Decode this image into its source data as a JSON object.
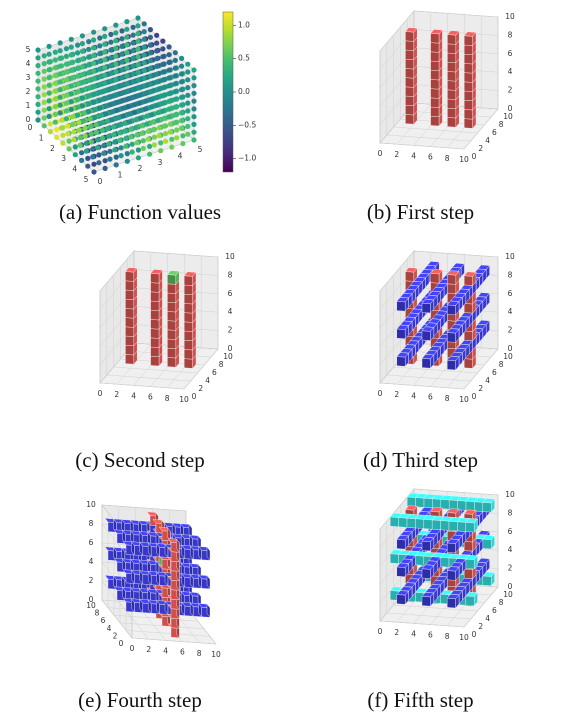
{
  "figure": {
    "captions": [
      "(a) Function values",
      "(b) First step",
      "(c) Second step",
      "(d) Third step",
      "(e) Fourth step",
      "(f) Fifth step"
    ]
  },
  "colors": {
    "red_voxel": "#d9534f",
    "green_voxel": "#5cb85c",
    "blue_voxel": "#3a3ad8",
    "cyan_voxel": "#33dfdf",
    "pane": "#f0f0f0",
    "grid": "#d0d0d0"
  },
  "chart_data": [
    {
      "type": "scatter",
      "subtype": "3d-scatter",
      "caption": "(a) Function values",
      "x_ticks": [
        "0",
        "1",
        "2",
        "3",
        "4",
        "5"
      ],
      "y_ticks": [
        "0",
        "1",
        "2",
        "3",
        "4",
        "5"
      ],
      "z_ticks": [
        "0",
        "1",
        "2",
        "3",
        "4",
        "5"
      ],
      "xlim": [
        0,
        5
      ],
      "ylim": [
        0,
        5
      ],
      "zlim": [
        0,
        5
      ],
      "grid_points_per_axis": 10,
      "colormap": "viridis",
      "colorbar": {
        "ticks": [
          "1.0",
          "0.5",
          "0.0",
          "−0.5",
          "−1.0"
        ],
        "range": [
          -1.2,
          1.2
        ]
      },
      "grid": true
    },
    {
      "type": "voxel",
      "caption": "(b) First step",
      "x_ticks": [
        "0",
        "2",
        "4",
        "6",
        "8",
        "10"
      ],
      "y_ticks": [
        "0",
        "2",
        "4",
        "6",
        "8",
        "10"
      ],
      "z_ticks": [
        "0",
        "2",
        "4",
        "6",
        "8",
        "10"
      ],
      "xlim": [
        0,
        10
      ],
      "ylim": [
        0,
        10
      ],
      "zlim": [
        0,
        10
      ],
      "columns": [
        {
          "x": 1,
          "y": 5
        },
        {
          "x": 4,
          "y": 5
        },
        {
          "x": 6,
          "y": 5
        },
        {
          "x": 8,
          "y": 5
        }
      ],
      "column_height": 10,
      "colors": [
        "red"
      ]
    },
    {
      "type": "voxel",
      "caption": "(c) Second step",
      "x_ticks": [
        "0",
        "2",
        "4",
        "6",
        "8",
        "10"
      ],
      "y_ticks": [
        "0",
        "2",
        "4",
        "6",
        "8",
        "10"
      ],
      "z_ticks": [
        "0",
        "2",
        "4",
        "6",
        "8",
        "10"
      ],
      "xlim": [
        0,
        10
      ],
      "ylim": [
        0,
        10
      ],
      "zlim": [
        0,
        10
      ],
      "columns": [
        {
          "x": 1,
          "y": 5
        },
        {
          "x": 4,
          "y": 5
        },
        {
          "x": 6,
          "y": 5
        },
        {
          "x": 8,
          "y": 5
        }
      ],
      "column_height": 10,
      "highlight": {
        "x": 6,
        "y": 5,
        "z": 9,
        "color": "green"
      },
      "colors": [
        "red",
        "green"
      ]
    },
    {
      "type": "voxel",
      "caption": "(d) Third step",
      "x_ticks": [
        "0",
        "2",
        "4",
        "6",
        "8",
        "10"
      ],
      "y_ticks": [
        "0",
        "2",
        "4",
        "6",
        "8",
        "10"
      ],
      "z_ticks": [
        "0",
        "2",
        "4",
        "6",
        "8",
        "10"
      ],
      "xlim": [
        0,
        10
      ],
      "ylim": [
        0,
        10
      ],
      "zlim": [
        0,
        10
      ],
      "columns": [
        {
          "x": 1,
          "y": 5
        },
        {
          "x": 4,
          "y": 5
        },
        {
          "x": 6,
          "y": 5
        },
        {
          "x": 8,
          "y": 5
        }
      ],
      "rods_y": [
        {
          "x": 2,
          "z": 8
        },
        {
          "x": 5,
          "z": 8
        },
        {
          "x": 8,
          "z": 8
        },
        {
          "x": 2,
          "z": 5
        },
        {
          "x": 5,
          "z": 5
        },
        {
          "x": 8,
          "z": 5
        },
        {
          "x": 2,
          "z": 2
        },
        {
          "x": 5,
          "z": 2
        },
        {
          "x": 8,
          "z": 2
        }
      ],
      "colors": [
        "red",
        "blue"
      ]
    },
    {
      "type": "voxel",
      "caption": "(e) Fourth step",
      "x_ticks": [
        "0",
        "2",
        "4",
        "6",
        "8",
        "10"
      ],
      "y_ticks": [
        "0",
        "2",
        "4",
        "6",
        "8",
        "10"
      ],
      "z_ticks": [
        "0",
        "2",
        "4",
        "6",
        "8",
        "10"
      ],
      "xlim": [
        0,
        10
      ],
      "ylim": [
        0,
        10
      ],
      "zlim": [
        0,
        10
      ],
      "view": "rotated",
      "columns": [
        {
          "x": 1,
          "y": 5
        },
        {
          "x": 4,
          "y": 5
        },
        {
          "x": 6,
          "y": 5
        },
        {
          "x": 8,
          "y": 5
        }
      ],
      "rods_y": [
        {
          "x": 2,
          "z": 8
        },
        {
          "x": 5,
          "z": 8
        },
        {
          "x": 8,
          "z": 8
        },
        {
          "x": 2,
          "z": 5
        },
        {
          "x": 5,
          "z": 5
        },
        {
          "x": 8,
          "z": 5
        },
        {
          "x": 2,
          "z": 2
        },
        {
          "x": 5,
          "z": 2
        },
        {
          "x": 8,
          "z": 2
        }
      ],
      "highlight": {
        "x": 5,
        "y": 5,
        "z": 6,
        "color": "green"
      },
      "colors": [
        "red",
        "blue",
        "green"
      ]
    },
    {
      "type": "voxel",
      "caption": "(f) Fifth step",
      "x_ticks": [
        "0",
        "2",
        "4",
        "6",
        "8",
        "10"
      ],
      "y_ticks": [
        "0",
        "2",
        "4",
        "6",
        "8",
        "10"
      ],
      "z_ticks": [
        "0",
        "2",
        "4",
        "6",
        "8",
        "10"
      ],
      "xlim": [
        0,
        10
      ],
      "ylim": [
        0,
        10
      ],
      "zlim": [
        0,
        10
      ],
      "columns": [
        {
          "x": 1,
          "y": 5
        },
        {
          "x": 4,
          "y": 5
        },
        {
          "x": 6,
          "y": 5
        },
        {
          "x": 8,
          "y": 5
        }
      ],
      "rods_y": [
        {
          "x": 2,
          "z": 8
        },
        {
          "x": 5,
          "z": 8
        },
        {
          "x": 8,
          "z": 8
        },
        {
          "x": 2,
          "z": 5
        },
        {
          "x": 5,
          "z": 5
        },
        {
          "x": 8,
          "z": 5
        },
        {
          "x": 2,
          "z": 2
        },
        {
          "x": 5,
          "z": 2
        },
        {
          "x": 8,
          "z": 2
        }
      ],
      "rods_x": [
        {
          "y": 8,
          "z": 9
        },
        {
          "y": 3,
          "z": 9
        },
        {
          "y": 8,
          "z": 5
        },
        {
          "y": 3,
          "z": 5
        },
        {
          "y": 8,
          "z": 1
        },
        {
          "y": 3,
          "z": 1
        }
      ],
      "colors": [
        "red",
        "blue",
        "cyan"
      ]
    }
  ]
}
